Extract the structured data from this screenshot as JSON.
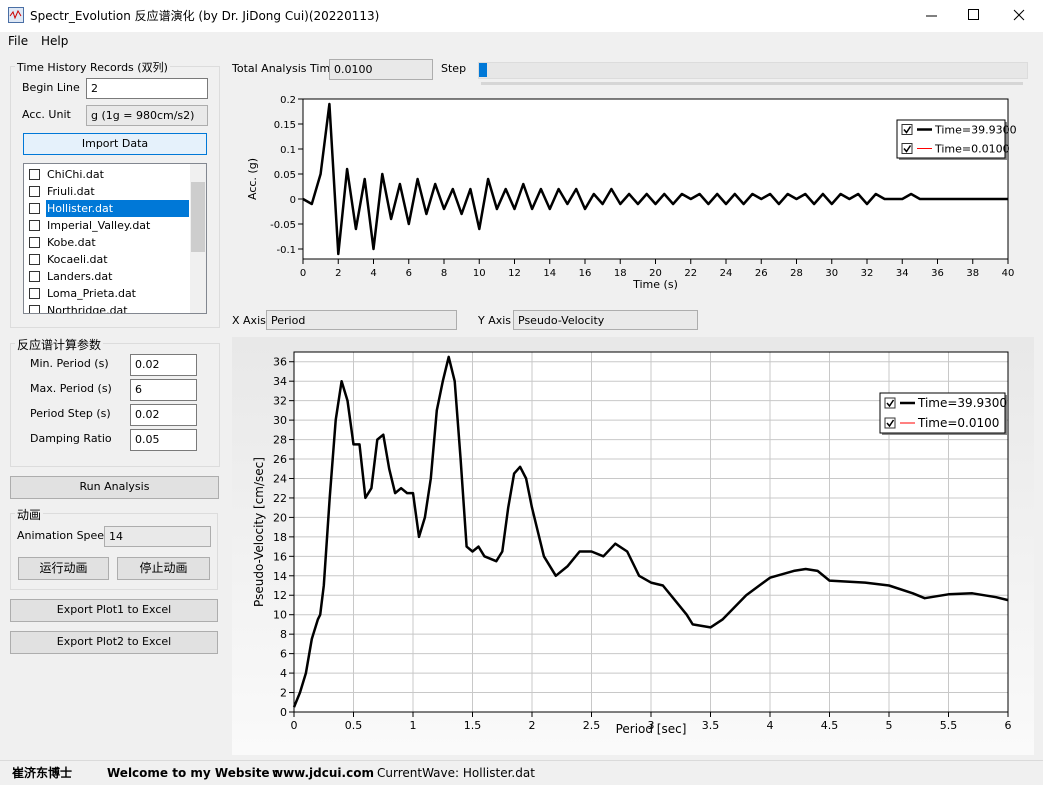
{
  "window": {
    "title": "Spectr_Evolution 反应谱演化 (by Dr. JiDong Cui)(20220113)"
  },
  "menu": [
    "File",
    "Help"
  ],
  "records": {
    "group": "Time History Records (双列)",
    "begin_line_label": "Begin Line",
    "begin_line": "2",
    "acc_unit_label": "Acc. Unit",
    "acc_unit": "g (1g = 980cm/s2)",
    "import": "Import Data",
    "files": [
      "ChiChi.dat",
      "Friuli.dat",
      "Hollister.dat",
      "Imperial_Valley.dat",
      "Kobe.dat",
      "Kocaeli.dat",
      "Landers.dat",
      "Loma_Prieta.dat",
      "Northridge.dat"
    ],
    "selected": 2
  },
  "params": {
    "group": "反应谱计算参数",
    "rows": [
      [
        "Min. Period (s)",
        "0.02"
      ],
      [
        "Max. Period (s)",
        "6"
      ],
      [
        "Period Step  (s)",
        "0.02"
      ],
      [
        "Damping Ratio",
        "0.05"
      ]
    ]
  },
  "run": "Run Analysis",
  "animation": {
    "group": "动画",
    "speed_label": "Animation Speed",
    "speed": "14",
    "run": "运行动画",
    "stop": "停止动画"
  },
  "export": [
    "Export Plot1 to Excel",
    "Export Plot2 to Excel"
  ],
  "controls": {
    "total_time_label": "Total Analysis Time",
    "total_time": "0.0100",
    "step_label": "Step",
    "x_axis_label": "X Axis",
    "x_axis": "Period",
    "y_axis_label": "Y Axis",
    "y_axis": "Pseudo-Velocity"
  },
  "status": [
    "崔济东博士",
    "Welcome to my Website :",
    "www.jdcui.com",
    "CurrentWave: Hollister.dat"
  ],
  "chart_data": [
    {
      "type": "line",
      "xlabel": "Time (s)",
      "ylabel": "Acc. (g)",
      "grid": false,
      "legend": "upper right",
      "xlim": [
        0,
        40
      ],
      "ylim": [
        -0.12,
        0.2
      ],
      "xticks": [
        0,
        2,
        4,
        6,
        8,
        10,
        12,
        14,
        16,
        18,
        20,
        22,
        24,
        26,
        28,
        30,
        32,
        34,
        36,
        38,
        40
      ],
      "yticks": [
        -0.1,
        -0.05,
        0,
        0.05,
        0.1,
        0.15,
        0.2
      ],
      "series": [
        {
          "name": "Time=39.9300",
          "color": "#000000",
          "x": [
            0,
            0.5,
            1,
            1.5,
            2,
            2.5,
            3,
            3.5,
            4,
            4.5,
            5,
            5.5,
            6,
            6.5,
            7,
            7.5,
            8,
            8.5,
            9,
            9.5,
            10,
            10.5,
            11,
            11.5,
            12,
            12.5,
            13,
            13.5,
            14,
            14.5,
            15,
            15.5,
            16,
            16.5,
            17,
            17.5,
            18,
            18.5,
            19,
            19.5,
            20,
            20.5,
            21,
            21.5,
            22,
            22.5,
            23,
            23.5,
            24,
            24.5,
            25,
            25.5,
            26,
            26.5,
            27,
            27.5,
            28,
            28.5,
            29,
            29.5,
            30,
            30.5,
            31,
            31.5,
            32,
            32.5,
            33,
            33.5,
            34,
            34.5,
            35,
            35.5,
            36,
            36.5,
            37,
            37.5,
            38,
            38.5,
            39,
            39.5,
            40
          ],
          "values": [
            0,
            -0.01,
            0.05,
            0.19,
            -0.11,
            0.06,
            -0.06,
            0.04,
            -0.1,
            0.05,
            -0.04,
            0.03,
            -0.05,
            0.04,
            -0.03,
            0.03,
            -0.02,
            0.02,
            -0.03,
            0.02,
            -0.06,
            0.04,
            -0.02,
            0.02,
            -0.02,
            0.03,
            -0.02,
            0.02,
            -0.02,
            0.02,
            -0.01,
            0.02,
            -0.02,
            0.01,
            -0.01,
            0.02,
            -0.01,
            0.01,
            -0.01,
            0.01,
            -0.01,
            0.01,
            -0.01,
            0.01,
            0,
            0.01,
            -0.01,
            0.01,
            -0.01,
            0.01,
            -0.01,
            0.01,
            0,
            0.01,
            -0.01,
            0.01,
            0,
            0.01,
            -0.01,
            0.01,
            -0.01,
            0.01,
            0,
            0.01,
            -0.01,
            0.01,
            0,
            0,
            0,
            0.01,
            0,
            0,
            0,
            0,
            0,
            0,
            0,
            0,
            0,
            0,
            0
          ]
        },
        {
          "name": "Time=0.0100",
          "color": "#ff0000",
          "x": [
            0
          ],
          "values": [
            0
          ]
        }
      ]
    },
    {
      "type": "line",
      "xlabel": "Period [sec]",
      "ylabel": "Pseudo-Velocity [cm/sec]",
      "grid": true,
      "legend": "upper right",
      "xlim": [
        0,
        6
      ],
      "ylim": [
        0,
        37
      ],
      "xticks": [
        0,
        0.5,
        1,
        1.5,
        2,
        2.5,
        3,
        3.5,
        4,
        4.5,
        5,
        5.5,
        6
      ],
      "yticks": [
        0,
        2,
        4,
        6,
        8,
        10,
        12,
        14,
        16,
        18,
        20,
        22,
        24,
        26,
        28,
        30,
        32,
        34,
        36
      ],
      "series": [
        {
          "name": "Time=39.9300",
          "color": "#000000",
          "x": [
            0,
            0.05,
            0.1,
            0.15,
            0.2,
            0.22,
            0.25,
            0.3,
            0.35,
            0.4,
            0.45,
            0.5,
            0.55,
            0.6,
            0.65,
            0.7,
            0.75,
            0.8,
            0.85,
            0.9,
            0.95,
            1.0,
            1.05,
            1.1,
            1.15,
            1.2,
            1.25,
            1.3,
            1.35,
            1.4,
            1.45,
            1.5,
            1.55,
            1.6,
            1.7,
            1.75,
            1.8,
            1.85,
            1.9,
            1.95,
            2.0,
            2.1,
            2.2,
            2.3,
            2.4,
            2.5,
            2.6,
            2.7,
            2.8,
            2.9,
            3.0,
            3.1,
            3.2,
            3.3,
            3.35,
            3.5,
            3.6,
            3.8,
            4.0,
            4.2,
            4.3,
            4.4,
            4.5,
            4.8,
            5.0,
            5.2,
            5.3,
            5.5,
            5.7,
            5.9,
            6.0
          ],
          "values": [
            0.5,
            2,
            4,
            7.5,
            9.5,
            10,
            13,
            22,
            30,
            34,
            32,
            27.5,
            27.5,
            22,
            23,
            28,
            28.5,
            25,
            22.5,
            23,
            22.5,
            22.5,
            18,
            20,
            24,
            31,
            34,
            36.5,
            34,
            26,
            17,
            16.5,
            17,
            16,
            15.5,
            16.5,
            21,
            24.5,
            25.2,
            24,
            21,
            16,
            14,
            15,
            16.5,
            16.5,
            16,
            17.3,
            16.5,
            14,
            13.3,
            13,
            11.5,
            10,
            9,
            8.7,
            9.5,
            12,
            13.8,
            14.5,
            14.7,
            14.5,
            13.5,
            13.3,
            13,
            12.2,
            11.7,
            12.1,
            12.2,
            11.8,
            11.5
          ]
        },
        {
          "name": "Time=0.0100",
          "color": "#ff0000",
          "x": [
            0
          ],
          "values": [
            0
          ]
        }
      ]
    }
  ]
}
